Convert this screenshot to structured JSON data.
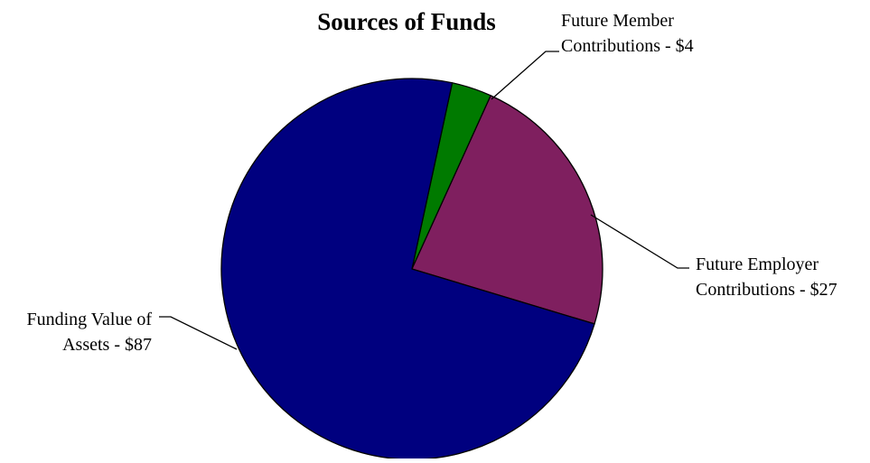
{
  "chart_data": {
    "type": "pie",
    "title": "Sources of Funds",
    "slices": [
      {
        "name": "Future Member Contributions",
        "value": 4,
        "color": "#007A00",
        "label_lines": [
          "Future Member",
          "Contributions - $4"
        ]
      },
      {
        "name": "Future Employer Contributions",
        "value": 27,
        "color": "#7F1F5F",
        "label_lines": [
          "Future Employer",
          "Contributions - $27"
        ]
      },
      {
        "name": "Funding Value of Assets",
        "value": 87,
        "color": "#00007F",
        "label_lines": [
          "Funding Value of",
          "Assets - $87"
        ]
      }
    ],
    "legend": "none"
  }
}
